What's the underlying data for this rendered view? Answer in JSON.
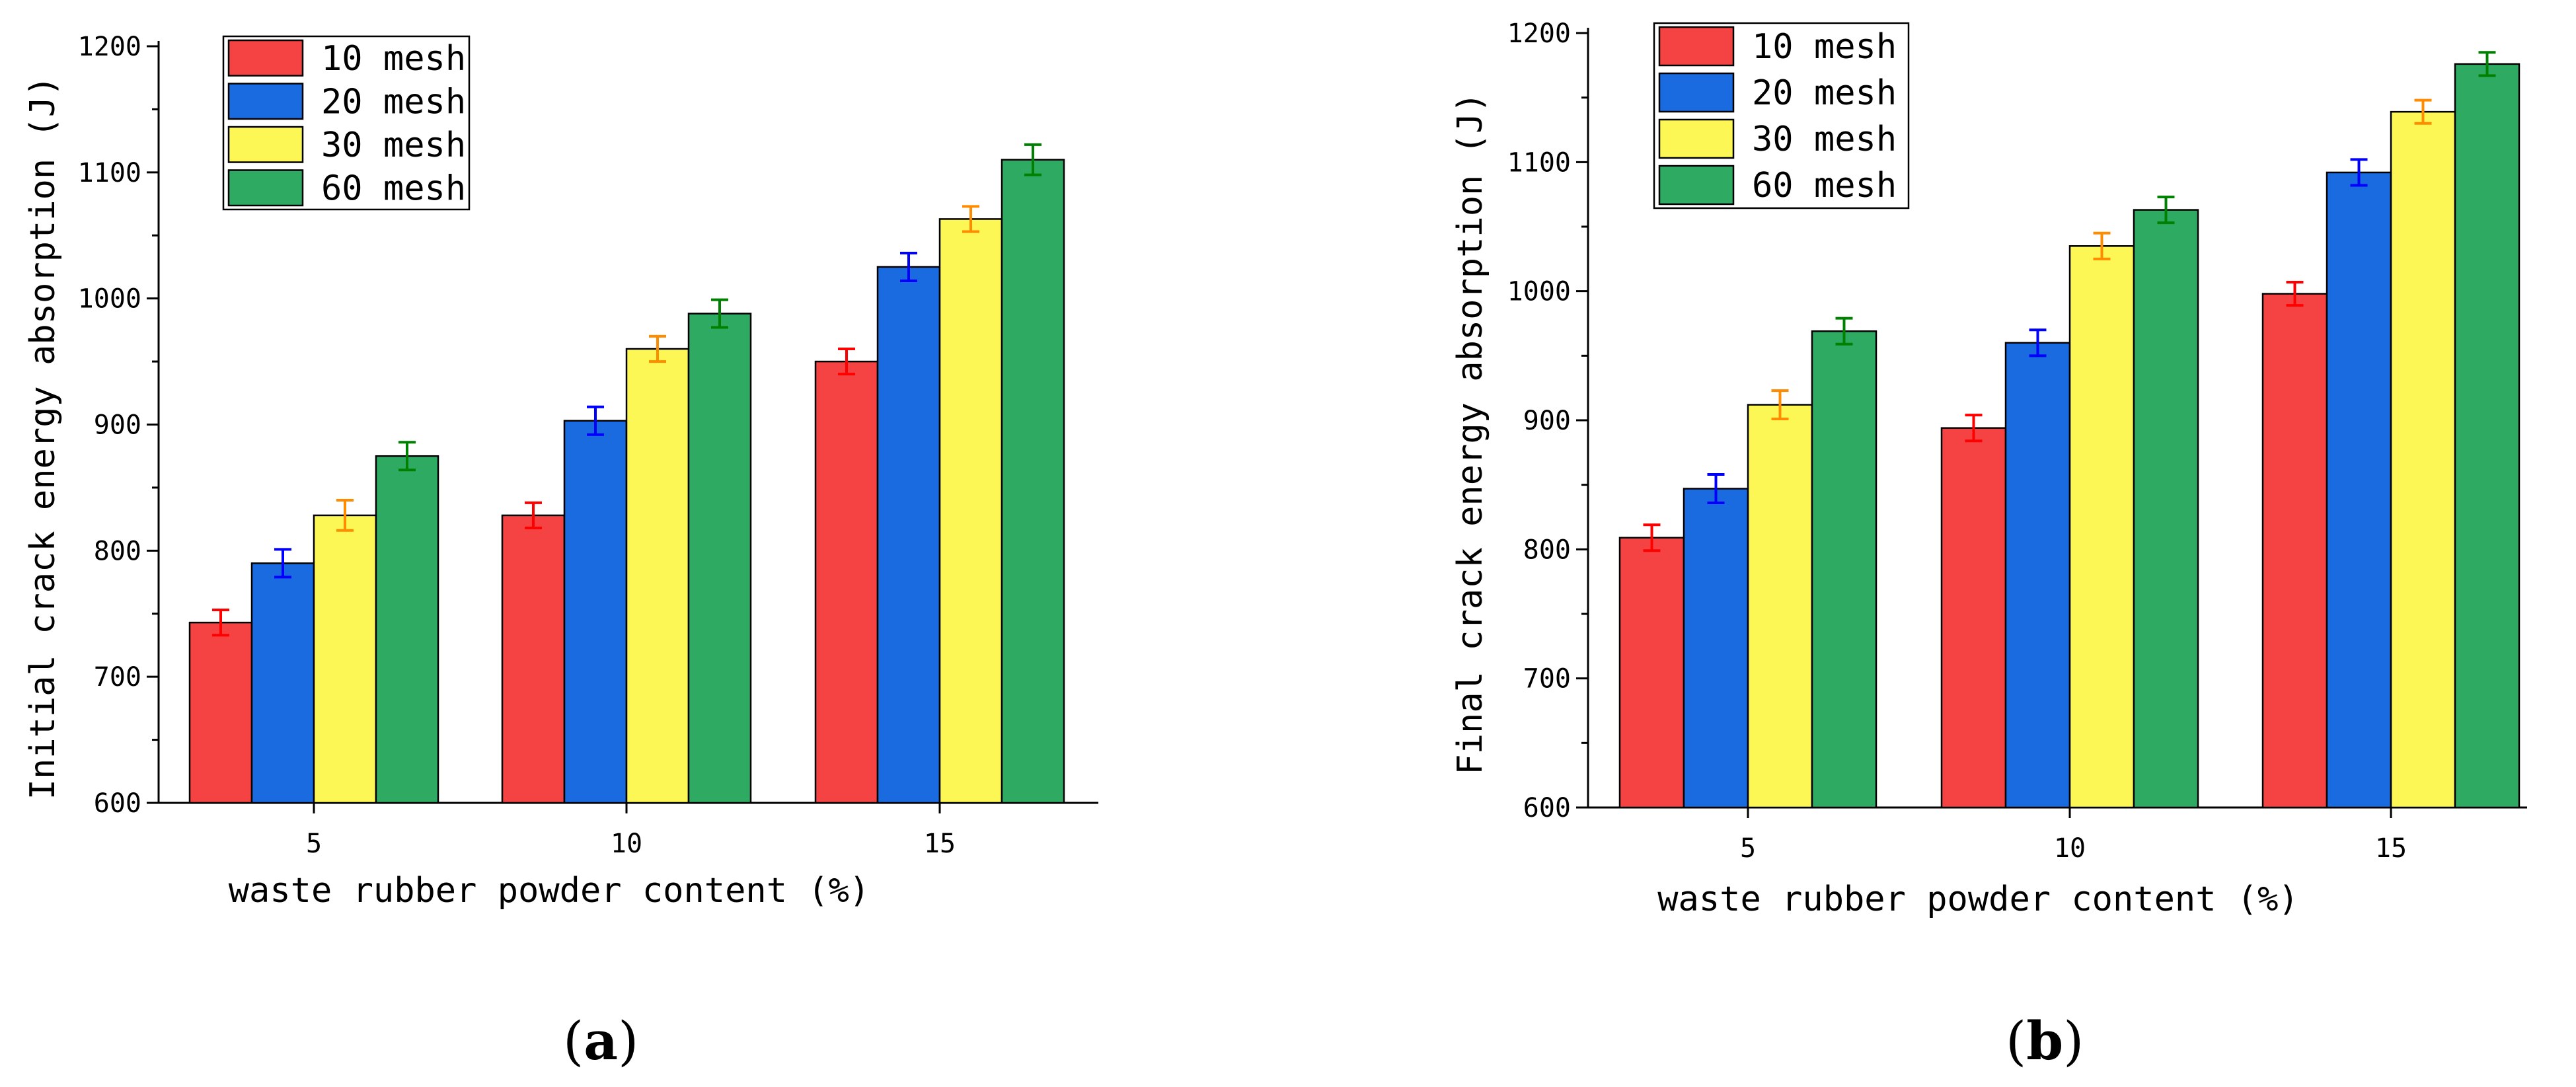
{
  "chart_data": [
    {
      "type": "bar",
      "panel_label": "a",
      "categories": [
        "5",
        "10",
        "15"
      ],
      "xlabel": "waste rubber powder content (%)",
      "ylabel": "Initial crack energy absorption (J)",
      "ylim": [
        600,
        1200
      ],
      "yticks": [
        600,
        700,
        800,
        900,
        1000,
        1100,
        1200
      ],
      "legend_position": "top-left",
      "series": [
        {
          "name": "10 mesh",
          "color": "#f54343",
          "err_color": "#ff0000",
          "values": [
            743,
            828,
            950
          ],
          "errors": [
            10,
            10,
            10
          ]
        },
        {
          "name": "20 mesh",
          "color": "#1a6ae0",
          "err_color": "#0000ff",
          "values": [
            790,
            903,
            1025
          ],
          "errors": [
            11,
            11,
            11
          ]
        },
        {
          "name": "30 mesh",
          "color": "#fcf755",
          "err_color": "#ff8c00",
          "values": [
            828,
            960,
            1063
          ],
          "errors": [
            12,
            10,
            10
          ]
        },
        {
          "name": "60 mesh",
          "color": "#2eaa62",
          "err_color": "#008000",
          "values": [
            875,
            988,
            1110
          ],
          "errors": [
            11,
            11,
            12
          ]
        }
      ]
    },
    {
      "type": "bar",
      "panel_label": "b",
      "categories": [
        "5",
        "10",
        "15"
      ],
      "xlabel": "waste rubber powder content (%)",
      "ylabel": "Final crack energy absorption (J)",
      "ylim": [
        600,
        1200
      ],
      "yticks": [
        600,
        700,
        800,
        900,
        1000,
        1100,
        1200
      ],
      "legend_position": "top-left",
      "series": [
        {
          "name": "10 mesh",
          "color": "#f54343",
          "err_color": "#ff0000",
          "values": [
            809,
            894,
            998
          ],
          "errors": [
            10,
            10,
            9
          ]
        },
        {
          "name": "20 mesh",
          "color": "#1a6ae0",
          "err_color": "#0000ff",
          "values": [
            847,
            960,
            1092
          ],
          "errors": [
            11,
            10,
            10
          ]
        },
        {
          "name": "30 mesh",
          "color": "#fcf755",
          "err_color": "#ff8c00",
          "values": [
            912,
            1035,
            1139
          ],
          "errors": [
            11,
            10,
            9
          ]
        },
        {
          "name": "60 mesh",
          "color": "#2eaa62",
          "err_color": "#008000",
          "values": [
            969,
            1063,
            1176
          ],
          "errors": [
            10,
            10,
            9
          ]
        }
      ]
    }
  ]
}
